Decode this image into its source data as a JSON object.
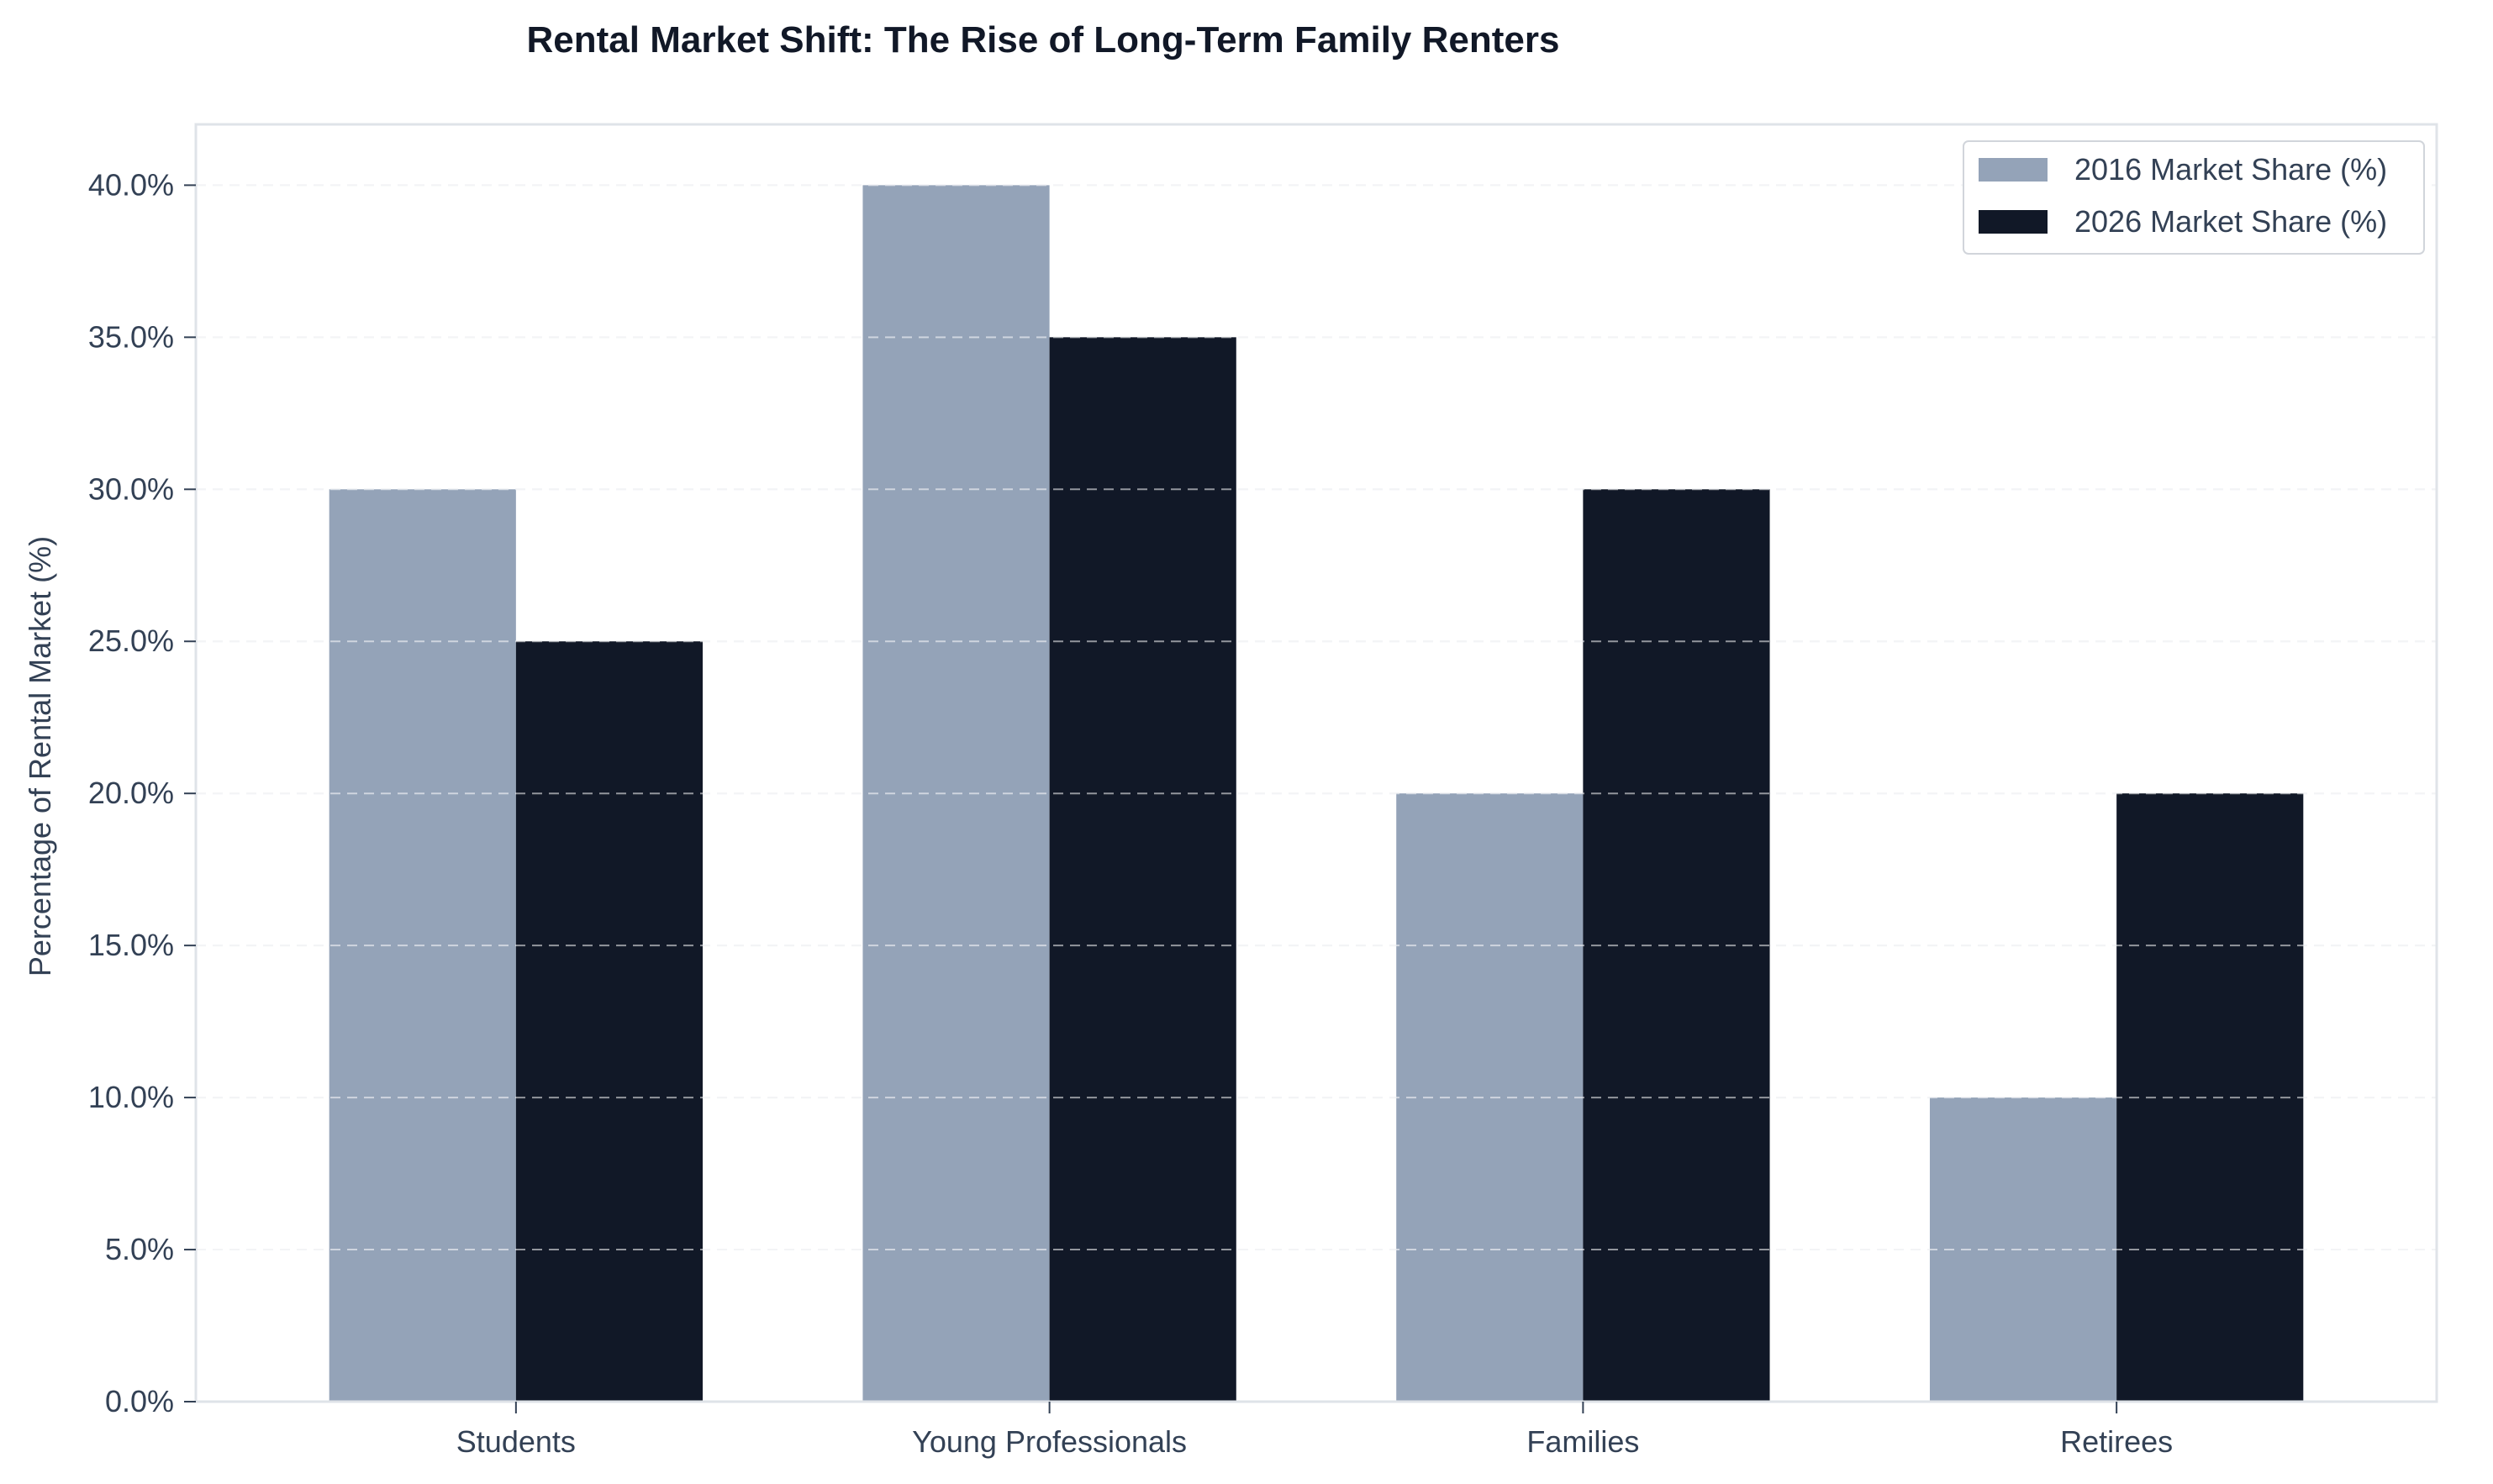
{
  "chart_data": {
    "type": "bar",
    "title": "Rental Market Shift: The Rise of Long-Term Family Renters",
    "xlabel": "",
    "ylabel": "Percentage of Rental Market (%)",
    "categories": [
      "Students",
      "Young Professionals",
      "Families",
      "Retirees"
    ],
    "series": [
      {
        "name": "2016 Market Share (%)",
        "values": [
          30,
          40,
          20,
          10
        ],
        "color": "#94a3b8"
      },
      {
        "name": "2026 Market Share (%)",
        "values": [
          25,
          35,
          30,
          20
        ],
        "color": "#111827"
      }
    ],
    "ylim": [
      0,
      42
    ],
    "yticks": [
      0,
      5,
      10,
      15,
      20,
      25,
      30,
      35,
      40
    ],
    "ytick_labels": [
      "0.0%",
      "5.0%",
      "10.0%",
      "15.0%",
      "20.0%",
      "25.0%",
      "30.0%",
      "35.0%",
      "40.0%"
    ],
    "grid": true,
    "legend_position": "top-right"
  }
}
